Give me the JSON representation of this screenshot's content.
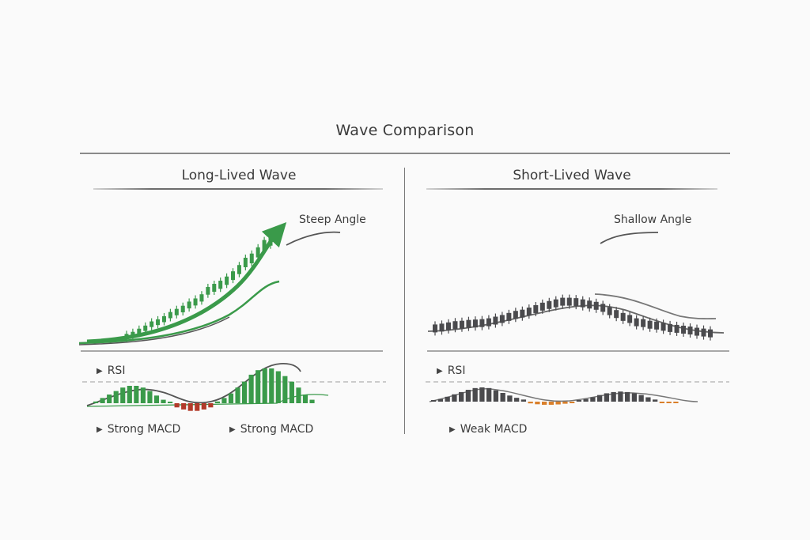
{
  "title": "Wave Comparison",
  "colors": {
    "green": "#3a9a4a",
    "green_dark": "#2e7d3c",
    "red": "#b23a2a",
    "orange": "#d97f2a",
    "gray_candle": "#4a4a4d",
    "line_gray": "#666666",
    "dashed": "#b0b0b0"
  },
  "panels": [
    {
      "id": "long",
      "title": "Long-Lived Wave",
      "angle_label": "Steep Angle",
      "rsi_label": "RSI",
      "macd_labels": [
        "Strong MACD",
        "Strong MACD"
      ],
      "candle_color": "green",
      "candles": [
        0.02,
        0.04,
        0.07,
        0.1,
        0.14,
        0.16,
        0.19,
        0.23,
        0.26,
        0.29,
        0.33,
        0.36,
        0.4,
        0.47,
        0.5,
        0.53,
        0.57,
        0.62,
        0.68,
        0.75,
        0.79,
        0.85,
        0.92,
        0.97
      ],
      "macd_hist": [
        0.05,
        0.15,
        0.25,
        0.35,
        0.45,
        0.5,
        0.5,
        0.45,
        0.35,
        0.22,
        0.1,
        0.0,
        -0.12,
        -0.18,
        -0.22,
        -0.22,
        -0.18,
        -0.12,
        0.05,
        0.15,
        0.28,
        0.45,
        0.62,
        0.82,
        0.95,
        1.0,
        1.0,
        0.92,
        0.78,
        0.62,
        0.45,
        0.25,
        0.1
      ],
      "macd_neg_color": "red",
      "macd_pos_color": "green"
    },
    {
      "id": "short",
      "title": "Short-Lived Wave",
      "angle_label": "Shallow Angle",
      "rsi_label": "RSI",
      "macd_labels": [
        "Weak MACD"
      ],
      "candle_color": "gray_candle",
      "candles": [
        0.05,
        0.07,
        0.1,
        0.13,
        0.14,
        0.16,
        0.17,
        0.18,
        0.2,
        0.24,
        0.28,
        0.33,
        0.38,
        0.41,
        0.46,
        0.52,
        0.58,
        0.62,
        0.66,
        0.7,
        0.7,
        0.69,
        0.66,
        0.63,
        0.6,
        0.55,
        0.47,
        0.4,
        0.33,
        0.28,
        0.2,
        0.18,
        0.14,
        0.12,
        0.09,
        0.06,
        0.04,
        0.02,
        0.0,
        -0.03,
        -0.05,
        -0.07
      ],
      "macd_hist": [
        0.08,
        0.15,
        0.28,
        0.42,
        0.55,
        0.68,
        0.78,
        0.82,
        0.78,
        0.65,
        0.5,
        0.35,
        0.22,
        0.12,
        -0.1,
        -0.15,
        -0.18,
        -0.18,
        -0.16,
        -0.12,
        -0.08,
        0.06,
        0.15,
        0.25,
        0.38,
        0.48,
        0.55,
        0.58,
        0.55,
        0.48,
        0.38,
        0.25,
        0.12,
        -0.05,
        -0.05,
        -0.05
      ],
      "macd_neg_color": "orange",
      "macd_pos_color": "gray_candle"
    }
  ]
}
